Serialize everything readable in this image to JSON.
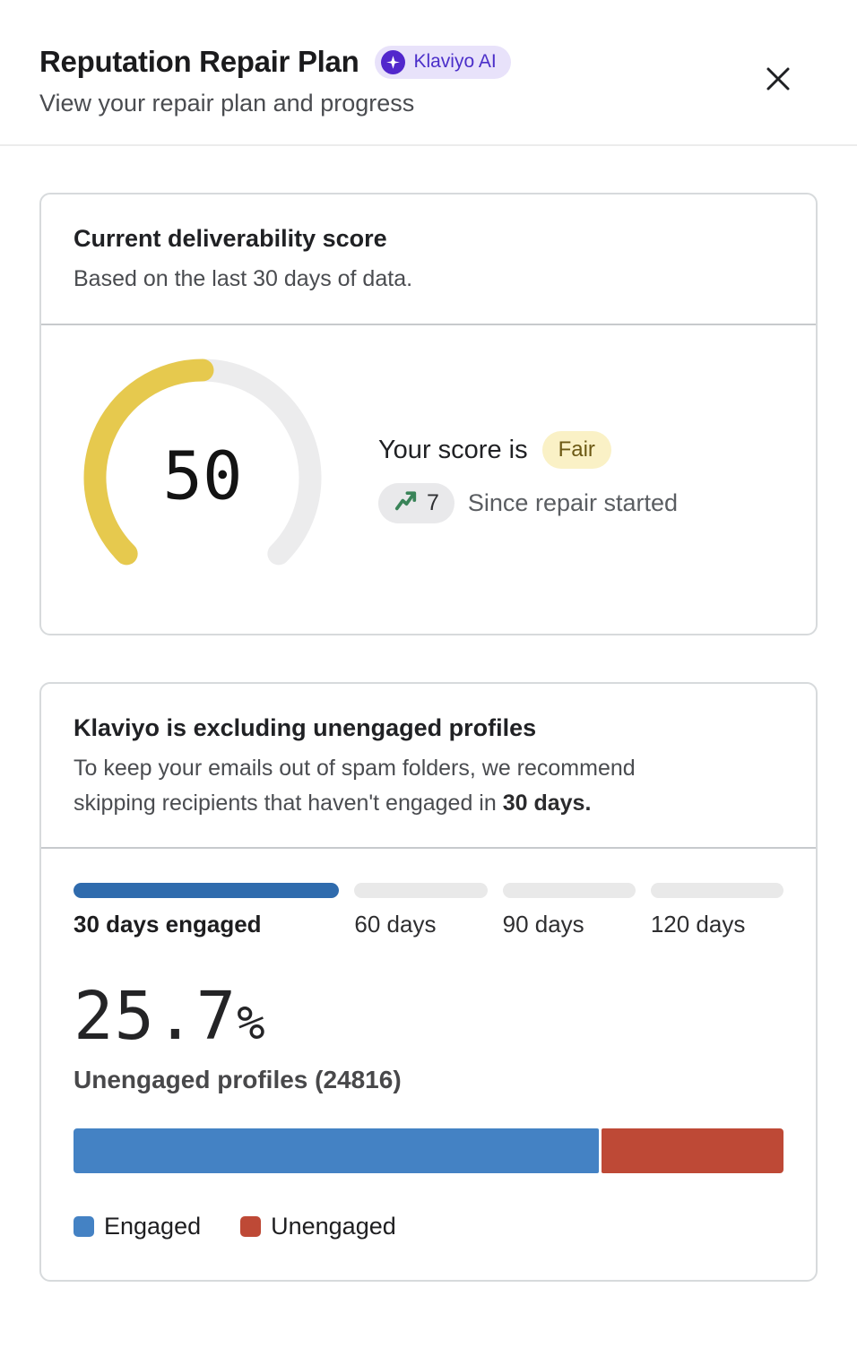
{
  "colors": {
    "accent_purple": "#5227cc",
    "ai_badge_bg": "#e8e2fa",
    "ai_badge_text": "#4b2fc9",
    "gauge_fill": "#e6c94e",
    "gauge_track": "#ececed",
    "fair_badge_bg": "#faf1c6",
    "fair_badge_text": "#6c5914",
    "delta_green": "#3a8459",
    "step_active_blue": "#2f6bad",
    "step_inactive_gray": "#e9e9e9",
    "engaged_blue": "#4482c4",
    "unengaged_red": "#be4936"
  },
  "header": {
    "title": "Reputation Repair Plan",
    "ai_badge_label": "Klaviyo AI",
    "subtitle": "View your repair plan and progress"
  },
  "score_card": {
    "title": "Current deliverability score",
    "subtitle": "Based on the last 30 days of data.",
    "gauge": {
      "value": 50,
      "max": 100
    },
    "score_prefix": "Your score is",
    "score_rating": "Fair",
    "score_delta": "7",
    "delta_caption": "Since repair started"
  },
  "exclusion_card": {
    "title": "Klaviyo is excluding unengaged profiles",
    "body_text": "To keep your emails out of spam folders, we recommend skipping recipients that haven't engaged in ",
    "body_bold": "30 days.",
    "steps": [
      {
        "label": "30 days engaged"
      },
      {
        "label": "60 days"
      },
      {
        "label": "90 days"
      },
      {
        "label": "120 days"
      }
    ],
    "active_step": 0,
    "percent": "25.7",
    "percent_unit": "%",
    "metric_label": "Unengaged profiles (24816)",
    "bar": {
      "engaged_pct": 74.3,
      "unengaged_pct": 25.7
    },
    "legend": [
      {
        "label": "Engaged"
      },
      {
        "label": "Unengaged"
      }
    ]
  },
  "chart_data": [
    {
      "type": "gauge",
      "title": "Current deliverability score",
      "value": 50,
      "range": [
        0,
        100
      ],
      "rating_label": "Fair",
      "delta_since_repair": 7,
      "sweep_degrees": 270
    },
    {
      "type": "bar",
      "mode": "stacked-horizontal",
      "categories": [
        "Profiles"
      ],
      "series": [
        {
          "name": "Engaged",
          "values": [
            74.3
          ]
        },
        {
          "name": "Unengaged",
          "values": [
            25.7
          ]
        }
      ],
      "unengaged_profiles_count": 24816,
      "unengaged_pct": 25.7,
      "legend_position": "bottom"
    }
  ]
}
